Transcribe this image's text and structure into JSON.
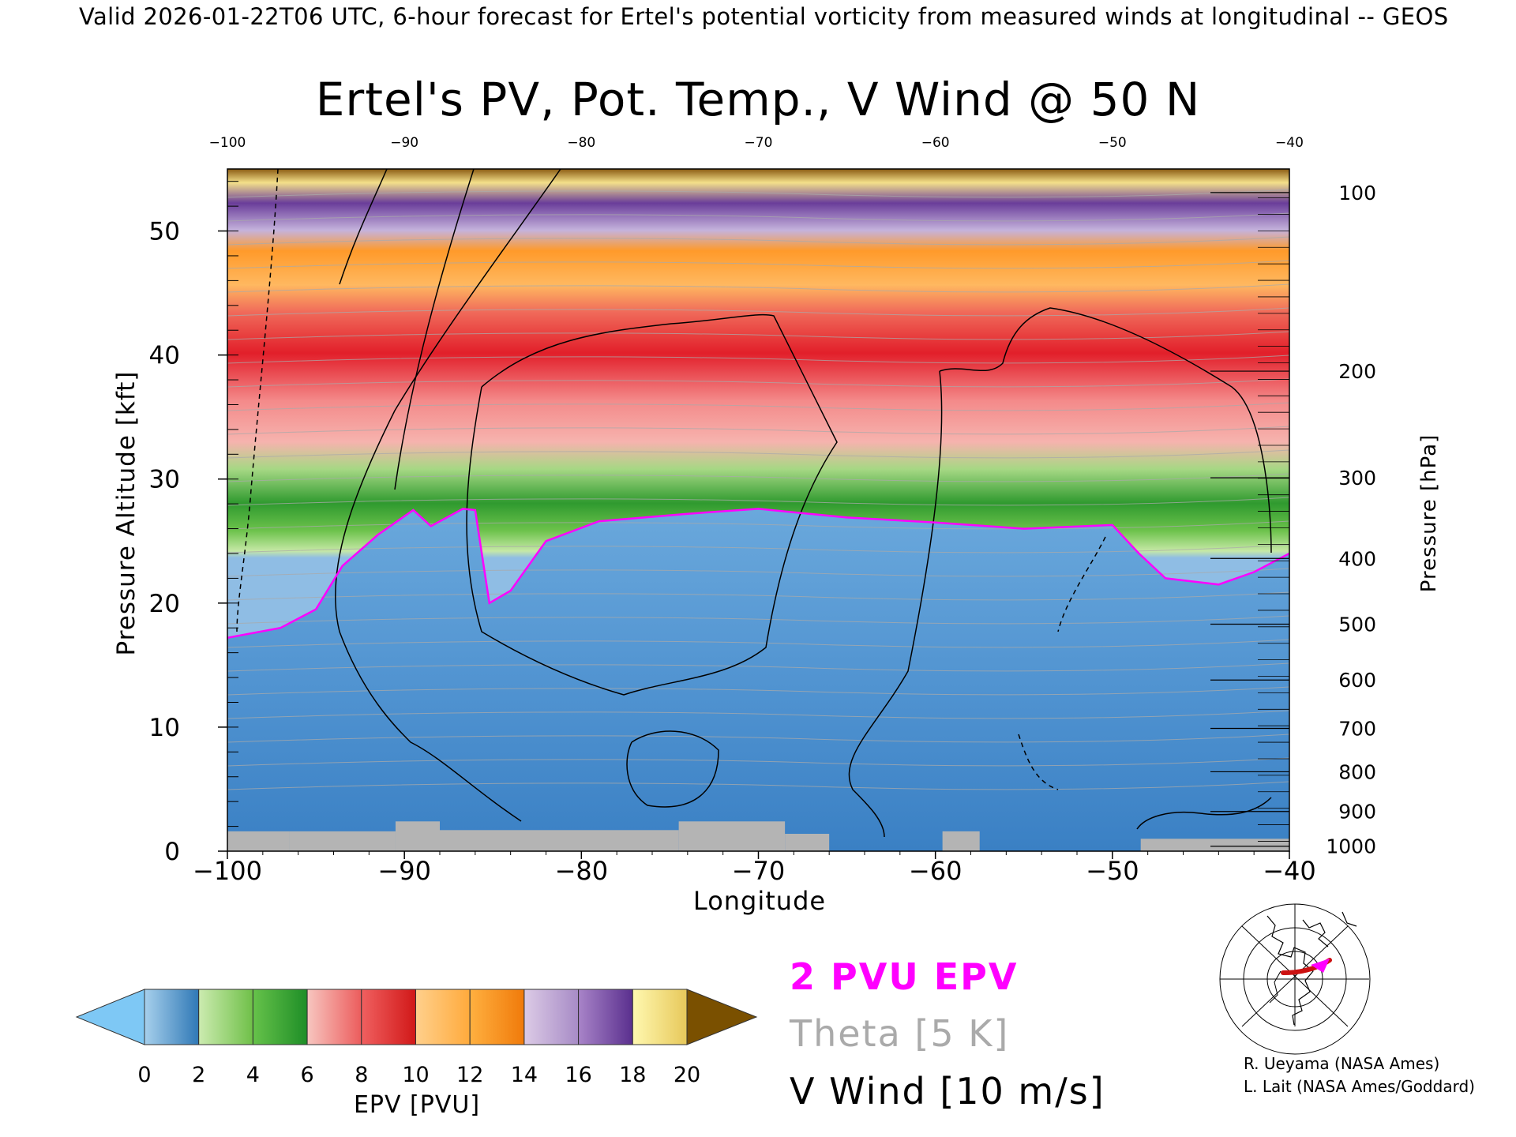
{
  "header": "Valid 2026-01-22T06 UTC, 6-hour forecast for Ertel's potential vorticity from measured winds at longitudinal -- GEOS",
  "chart_data": {
    "type": "heatmap",
    "title": "Ertel's PV, Pot. Temp., V Wind @ 50 N",
    "xlabel": "Longitude",
    "ylabel": "Pressure Altitude [kft]",
    "y2label": "Pressure [hPa]",
    "xlim": [
      -100,
      -40
    ],
    "ylim": [
      0,
      55
    ],
    "x_ticks": [
      -100,
      -90,
      -80,
      -70,
      -60,
      -50,
      -40
    ],
    "x_tick_labels": [
      "−100",
      "−90",
      "−80",
      "−70",
      "−60",
      "−50",
      "−40"
    ],
    "x_top_tick_labels": [
      "−100",
      "−90",
      "−80",
      "−70",
      "−60",
      "−50",
      "−40"
    ],
    "y_ticks": [
      0,
      10,
      20,
      30,
      40,
      50
    ],
    "pressure_ticks": [
      {
        "hpa": "100",
        "kft": 53.1
      },
      {
        "hpa": "200",
        "kft": 38.7
      },
      {
        "hpa": "300",
        "kft": 30.1
      },
      {
        "hpa": "400",
        "kft": 23.6
      },
      {
        "hpa": "500",
        "kft": 18.3
      },
      {
        "hpa": "600",
        "kft": 13.8
      },
      {
        "hpa": "700",
        "kft": 9.9
      },
      {
        "hpa": "800",
        "kft": 6.4
      },
      {
        "hpa": "900",
        "kft": 3.2
      },
      {
        "hpa": "1000",
        "kft": 0.4
      }
    ],
    "pv_2pvu_boundary": [
      {
        "x": -100,
        "y": 17.2
      },
      {
        "x": -97,
        "y": 18
      },
      {
        "x": -95,
        "y": 19.5
      },
      {
        "x": -93.5,
        "y": 23
      },
      {
        "x": -91.5,
        "y": 25.5
      },
      {
        "x": -89.5,
        "y": 27.5
      },
      {
        "x": -88.5,
        "y": 26.2
      },
      {
        "x": -86.7,
        "y": 27.6
      },
      {
        "x": -86,
        "y": 27.5
      },
      {
        "x": -85.2,
        "y": 20
      },
      {
        "x": -84,
        "y": 21
      },
      {
        "x": -82,
        "y": 25
      },
      {
        "x": -79,
        "y": 26.6
      },
      {
        "x": -74,
        "y": 27.2
      },
      {
        "x": -70,
        "y": 27.6
      },
      {
        "x": -65,
        "y": 26.9
      },
      {
        "x": -60,
        "y": 26.5
      },
      {
        "x": -55,
        "y": 26
      },
      {
        "x": -50,
        "y": 26.3
      },
      {
        "x": -48.5,
        "y": 24
      },
      {
        "x": -47,
        "y": 22
      },
      {
        "x": -44,
        "y": 21.5
      },
      {
        "x": -42,
        "y": 22.5
      },
      {
        "x": -40,
        "y": 24
      }
    ],
    "colorbar": {
      "label": "EPV [PVU]",
      "tick_values": [
        0,
        2,
        4,
        6,
        8,
        10,
        12,
        14,
        16,
        18,
        20
      ],
      "tick_labels": [
        "0",
        "2",
        "4",
        "6",
        "8",
        "10",
        "12",
        "14",
        "16",
        "18",
        "20"
      ],
      "under_color": "#7ec8f5",
      "over_color": "#7a5000",
      "segments": [
        {
          "from": 0,
          "to": 2,
          "colors": [
            "#a7d0ec",
            "#2f78b6"
          ]
        },
        {
          "from": 2,
          "to": 4,
          "colors": [
            "#ccebb0",
            "#6fc048"
          ]
        },
        {
          "from": 4,
          "to": 6,
          "colors": [
            "#66c24a",
            "#1e8e27"
          ]
        },
        {
          "from": 6,
          "to": 8,
          "colors": [
            "#f7c6c0",
            "#ec5c5c"
          ]
        },
        {
          "from": 8,
          "to": 10,
          "colors": [
            "#f06060",
            "#d11818"
          ]
        },
        {
          "from": 10,
          "to": 12,
          "colors": [
            "#ffd08c",
            "#ffaa3c"
          ]
        },
        {
          "from": 12,
          "to": 14,
          "colors": [
            "#ffb040",
            "#f07a0a"
          ]
        },
        {
          "from": 14,
          "to": 16,
          "colors": [
            "#dccbe6",
            "#a78bc6"
          ]
        },
        {
          "from": 16,
          "to": 18,
          "colors": [
            "#a884c8",
            "#5a2f8e"
          ]
        },
        {
          "from": 18,
          "to": 20,
          "colors": [
            "#fff8b0",
            "#e7c85a"
          ]
        }
      ]
    },
    "legend": {
      "pv_line": "2 PVU EPV",
      "theta": "Theta [5 K]",
      "vwind": "V Wind [10 m/s]",
      "pv_color": "#ff00ff",
      "theta_color": "#aaaaaa",
      "vwind_color": "#000000"
    }
  },
  "credits": {
    "line1": "R. Ueyama (NASA Ames)",
    "line2": "L. Lait (NASA Ames/Goddard)"
  },
  "colors": {
    "plot_blue": "#3a7ec0",
    "ground": "#b4b4b4"
  }
}
